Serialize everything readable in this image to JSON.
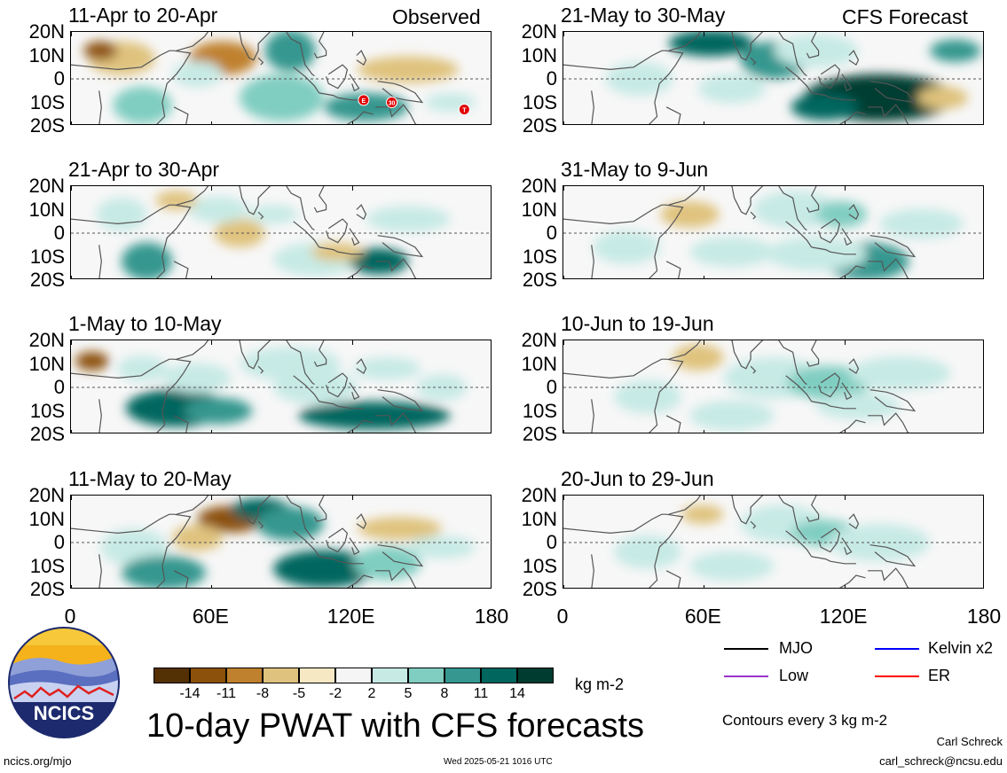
{
  "header": {
    "observed_label": "Observed",
    "forecast_label": "CFS Forecast"
  },
  "panels_left": [
    {
      "title": "11-Apr to 20-Apr"
    },
    {
      "title": "21-Apr to 30-Apr"
    },
    {
      "title": "1-May to 10-May"
    },
    {
      "title": "11-May to 20-May"
    }
  ],
  "panels_right": [
    {
      "title": "21-May to 30-May"
    },
    {
      "title": "31-May to 9-Jun"
    },
    {
      "title": "10-Jun to 19-Jun"
    },
    {
      "title": "20-Jun to 29-Jun"
    }
  ],
  "lat_labels": [
    "20N",
    "10N",
    "0",
    "10S",
    "20S"
  ],
  "lon_labels": [
    "0",
    "60E",
    "120E",
    "180"
  ],
  "colorbar": {
    "labels": [
      "-14",
      "-11",
      "-8",
      "-5",
      "-2",
      "2",
      "5",
      "8",
      "11",
      "14"
    ],
    "colors": [
      "#543005",
      "#8c510a",
      "#bf812d",
      "#dfc27d",
      "#f6e8c3",
      "#f5f5f5",
      "#c7eae5",
      "#80cdc1",
      "#35978f",
      "#01665e",
      "#003c30"
    ],
    "units": "kg m-2"
  },
  "legend": {
    "items": [
      {
        "label": "MJO",
        "color": "#000000"
      },
      {
        "label": "Kelvin x2",
        "color": "#0000ff"
      },
      {
        "label": "Low",
        "color": "#9933cc"
      },
      {
        "label": "ER",
        "color": "#ff0000"
      }
    ],
    "contour_note": "Contours every 3 kg m-2"
  },
  "logo": {
    "text": "NCICS"
  },
  "footer": {
    "main_title": "10-day PWAT with CFS forecasts",
    "url": "ncics.org/mjo",
    "timestamp": "Wed 2025-05-21 1016 UTC",
    "author": "Carl Schreck",
    "email": "carl_schreck@ncsu.edu"
  },
  "storm_markers": [
    {
      "label": "E",
      "lon": 125,
      "lat": -9
    },
    {
      "label": "30",
      "lon": 137,
      "lat": -10
    },
    {
      "label": "T",
      "lon": 168,
      "lat": -13
    }
  ]
}
